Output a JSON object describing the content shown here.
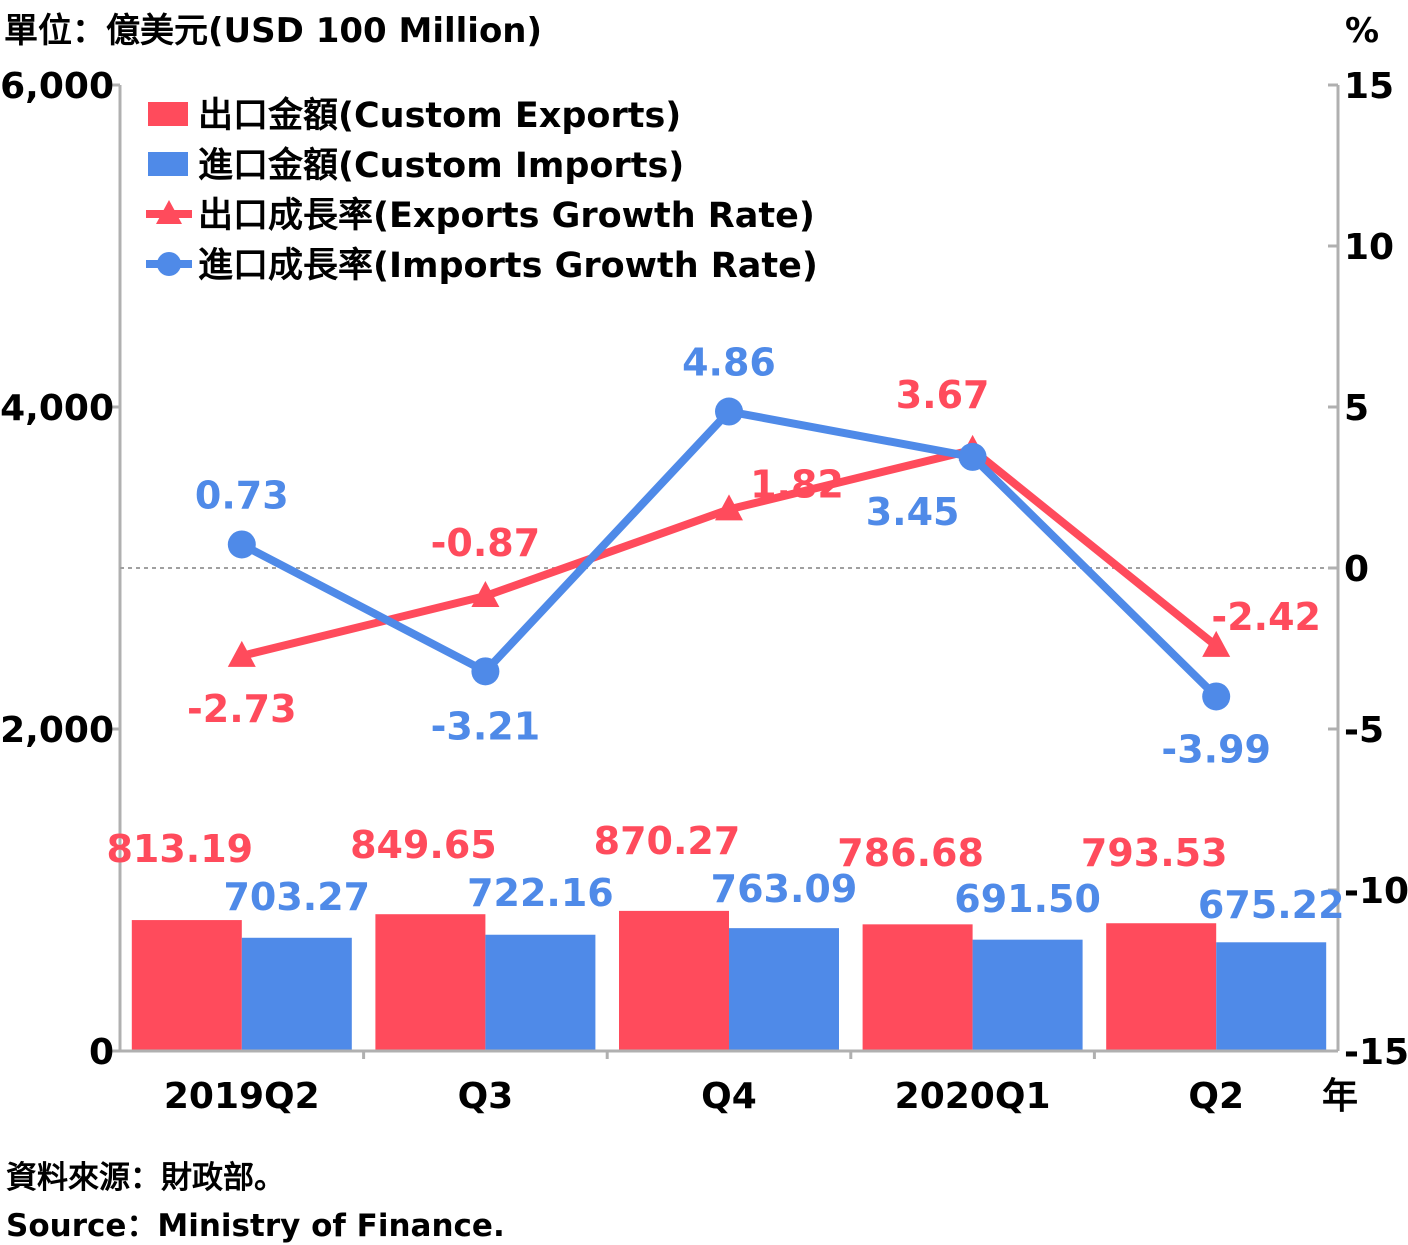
{
  "unit_label": "單位：億美元(USD 100 Million)",
  "right_unit_label": "%",
  "year_label": "年",
  "source_zh": "資料來源：財政部。",
  "source_en": "Source：Ministry of Finance.",
  "colors": {
    "exports": "#FF4B5C",
    "imports": "#4F8AE8",
    "axis": "#B0B0B0",
    "zero_line": "#A0A0A0"
  },
  "chart_data": {
    "type": "bar",
    "categories": [
      "2019Q2",
      "Q3",
      "Q4",
      "2020Q1",
      "Q2"
    ],
    "left_axis": {
      "ylim": [
        0,
        6000
      ],
      "ticks": [
        "0",
        "2,000",
        "4,000",
        "6,000"
      ],
      "tick_values": [
        0,
        2000,
        4000,
        6000
      ]
    },
    "right_axis": {
      "ylim": [
        -15,
        15
      ],
      "ticks": [
        "-15",
        "-10",
        "-5",
        "0",
        "5",
        "10",
        "15"
      ],
      "tick_values": [
        -15,
        -10,
        -5,
        0,
        5,
        10,
        15
      ]
    },
    "grid": false,
    "legend_placement": "top-left",
    "series": [
      {
        "name": "出口金額(Custom Exports)",
        "kind": "bar",
        "axis": "left",
        "values": [
          813.19,
          849.65,
          870.27,
          786.68,
          793.53
        ],
        "labels": [
          "813.19",
          "849.65",
          "870.27",
          "786.68",
          "793.53"
        ]
      },
      {
        "name": "進口金額(Custom Imports)",
        "kind": "bar",
        "axis": "left",
        "values": [
          703.27,
          722.16,
          763.09,
          691.5,
          675.22
        ],
        "labels": [
          "703.27",
          "722.16",
          "763.09",
          "691.50",
          "675.22"
        ]
      },
      {
        "name": "出口成長率(Exports Growth Rate)",
        "kind": "line",
        "marker": "triangle",
        "axis": "right",
        "values": [
          -2.73,
          -0.87,
          1.82,
          3.67,
          -2.42
        ],
        "labels": [
          "-2.73",
          "-0.87",
          "1.82",
          "3.67",
          "-2.42"
        ]
      },
      {
        "name": "進口成長率(Imports Growth Rate)",
        "kind": "line",
        "marker": "circle",
        "axis": "right",
        "values": [
          0.73,
          -3.21,
          4.86,
          3.45,
          -3.99
        ],
        "labels": [
          "0.73",
          "-3.21",
          "4.86",
          "3.45",
          "-3.99"
        ]
      }
    ]
  }
}
